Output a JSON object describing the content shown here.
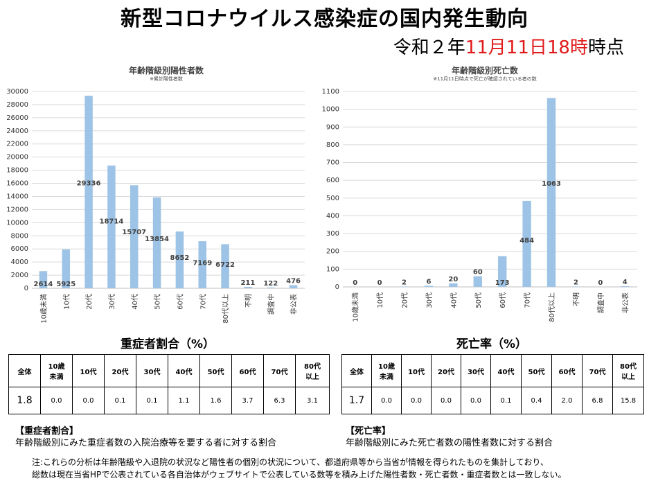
{
  "header": {
    "title": "新型コロナウイルス感染症の国内発生動向",
    "date_prefix": "令和２年",
    "date_red": "11月11日18時",
    "date_suffix": "時点"
  },
  "chart_data": [
    {
      "type": "bar",
      "title": "年齢階級別陽性者数",
      "subtitle": "※累計陽性者数",
      "categories": [
        "10歳未満",
        "10代",
        "20代",
        "30代",
        "40代",
        "50代",
        "60代",
        "70代",
        "80代以上",
        "不明",
        "調査中",
        "非公表"
      ],
      "values": [
        2614,
        5925,
        29336,
        18714,
        15707,
        13854,
        8652,
        7169,
        6722,
        211,
        122,
        476
      ],
      "ylim": [
        0,
        30000
      ],
      "yticks": [
        0,
        2000,
        4000,
        6000,
        8000,
        10000,
        12000,
        14000,
        16000,
        18000,
        20000,
        22000,
        24000,
        26000,
        28000,
        30000
      ],
      "grid": true,
      "color": "#9dc3e6"
    },
    {
      "type": "bar",
      "title": "年齢階級別死亡数",
      "subtitle": "※11月11日時点で死亡が確認されている者の数",
      "categories": [
        "10歳未満",
        "10代",
        "20代",
        "30代",
        "40代",
        "50代",
        "60代",
        "70代",
        "80代以上",
        "不明",
        "調査中",
        "非公表"
      ],
      "values": [
        0,
        0,
        2,
        6,
        20,
        60,
        173,
        484,
        1063,
        2,
        0,
        4
      ],
      "ylim": [
        0,
        1100
      ],
      "yticks": [
        0,
        100,
        200,
        300,
        400,
        500,
        600,
        700,
        800,
        900,
        1000,
        1100
      ],
      "grid": true,
      "color": "#9dc3e6"
    }
  ],
  "severe_table": {
    "title": "重症者割合（%）",
    "headers": [
      "全体",
      "10歳\n未満",
      "10代",
      "20代",
      "30代",
      "40代",
      "50代",
      "60代",
      "70代",
      "80代\n以上"
    ],
    "values": [
      "1.8",
      "0.0",
      "0.0",
      "0.1",
      "0.1",
      "1.1",
      "1.6",
      "3.7",
      "6.3",
      "3.1"
    ],
    "def_head": "【重症者割合】",
    "def_body": "年齢階級別にみた重症者数の入院治療等を要する者に対する割合"
  },
  "death_table": {
    "title": "死亡率（%）",
    "headers": [
      "全体",
      "10歳\n未満",
      "10代",
      "20代",
      "30代",
      "40代",
      "50代",
      "60代",
      "70代",
      "80代\n以上"
    ],
    "values": [
      "1.7",
      "0.0",
      "0.0",
      "0.0",
      "0.0",
      "0.1",
      "0.4",
      "2.0",
      "6.8",
      "15.8"
    ],
    "def_head": "【死亡率】",
    "def_body": "年齢階級別にみた死亡者数の陽性者数に対する割合"
  },
  "footnote": {
    "line1": "注:これらの分析は年齢階級や入退院の状況など陽性者の個別の状況について、都道府県等から当省が情報を得られたものを集計しており、",
    "line2": "総数は現在当省HPで公表されている各自治体がウェブサイトで公表している数等を積み上げた陽性者数・死亡者数・重症者数とは一致しない。"
  }
}
